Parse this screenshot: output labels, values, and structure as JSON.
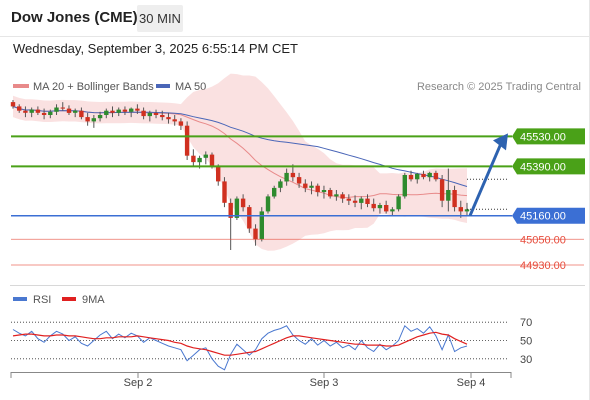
{
  "header": {
    "title": "Dow Jones (CME)",
    "timeframe": "30 MIN",
    "datetime": "Wednesday, September 3, 2025 6:55:14 PM CET"
  },
  "legend": {
    "ma20_label": "MA 20 + Bollinger Bands",
    "ma50_label": "MA 50",
    "credit": "Research © 2025 Trading Central",
    "rsi_label": "RSI",
    "rsi_ma_label": "9MA"
  },
  "colors": {
    "up": "#2e8b2e",
    "down": "#d03020",
    "support": "#3b6fd4",
    "resistance": "#4aa118",
    "target": "#e74c3c",
    "bands": "#f6c9c9",
    "ma20": "#e88a8a",
    "ma50": "#4a66b8",
    "rsi": "#4a78d0",
    "rsi_ma": "#e02020",
    "arrow": "#2d62b0"
  },
  "chart_data": [
    {
      "type": "candlestick",
      "title": "Dow Jones (CME)",
      "ylim": [
        44860,
        45700
      ],
      "x_tick_labels": [
        "Sep 2",
        "Sep 3",
        "Sep 4"
      ],
      "levels": [
        {
          "value": 45530.0,
          "label": "45530.00",
          "kind": "resistance"
        },
        {
          "value": 45390.0,
          "label": "45390.00",
          "kind": "resistance"
        },
        {
          "value": 45160.0,
          "label": "45160.00",
          "kind": "support"
        },
        {
          "value": 45050.0,
          "label": "45050.00",
          "kind": "target"
        },
        {
          "value": 44930.0,
          "label": "44930.00",
          "kind": "target"
        }
      ],
      "ohlc": [
        [
          45690,
          45700,
          45660,
          45670
        ],
        [
          45670,
          45680,
          45640,
          45650
        ],
        [
          45650,
          45670,
          45620,
          45640
        ],
        [
          45640,
          45665,
          45620,
          45655
        ],
        [
          45655,
          45670,
          45630,
          45640
        ],
        [
          45640,
          45660,
          45610,
          45630
        ],
        [
          45630,
          45655,
          45615,
          45645
        ],
        [
          45645,
          45680,
          45630,
          45665
        ],
        [
          45665,
          45690,
          45650,
          45660
        ],
        [
          45660,
          45675,
          45630,
          45640
        ],
        [
          45640,
          45660,
          45620,
          45650
        ],
        [
          45650,
          45665,
          45610,
          45620
        ],
        [
          45620,
          45640,
          45580,
          45600
        ],
        [
          45600,
          45630,
          45570,
          45615
        ],
        [
          45615,
          45645,
          45600,
          45630
        ],
        [
          45630,
          45660,
          45615,
          45650
        ],
        [
          45650,
          45670,
          45620,
          45640
        ],
        [
          45640,
          45665,
          45625,
          45655
        ],
        [
          45655,
          45670,
          45630,
          45645
        ],
        [
          45645,
          45665,
          45620,
          45660
        ],
        [
          45660,
          45680,
          45635,
          45650
        ],
        [
          45650,
          45665,
          45610,
          45625
        ],
        [
          45625,
          45650,
          45600,
          45640
        ],
        [
          45640,
          45655,
          45615,
          45630
        ],
        [
          45630,
          45650,
          45605,
          45620
        ],
        [
          45620,
          45640,
          45590,
          45610
        ],
        [
          45610,
          45630,
          45580,
          45600
        ],
        [
          45600,
          45615,
          45560,
          45580
        ],
        [
          45580,
          45600,
          45420,
          45440
        ],
        [
          45440,
          45470,
          45390,
          45410
        ],
        [
          45410,
          45440,
          45380,
          45430
        ],
        [
          45430,
          45460,
          45400,
          45445
        ],
        [
          45445,
          45455,
          45380,
          45390
        ],
        [
          45390,
          45400,
          45300,
          45320
        ],
        [
          45320,
          45340,
          45200,
          45220
        ],
        [
          45220,
          45240,
          45000,
          45150
        ],
        [
          45150,
          45250,
          45140,
          45240
        ],
        [
          45240,
          45260,
          45180,
          45200
        ],
        [
          45200,
          45210,
          45080,
          45100
        ],
        [
          45100,
          45120,
          45020,
          45050
        ],
        [
          45050,
          45200,
          45040,
          45180
        ],
        [
          45180,
          45260,
          45170,
          45250
        ],
        [
          45250,
          45300,
          45240,
          45290
        ],
        [
          45290,
          45330,
          45270,
          45320
        ],
        [
          45320,
          45380,
          45300,
          45360
        ],
        [
          45360,
          45400,
          45320,
          45340
        ],
        [
          45340,
          45360,
          45290,
          45310
        ],
        [
          45310,
          45330,
          45270,
          45290
        ],
        [
          45290,
          45320,
          45260,
          45300
        ],
        [
          45300,
          45310,
          45250,
          45270
        ],
        [
          45270,
          45300,
          45240,
          45280
        ],
        [
          45280,
          45290,
          45240,
          45250
        ],
        [
          45250,
          45280,
          45230,
          45260
        ],
        [
          45260,
          45270,
          45220,
          45240
        ],
        [
          45240,
          45260,
          45210,
          45230
        ],
        [
          45230,
          45255,
          45200,
          45220
        ],
        [
          45220,
          45250,
          45190,
          45240
        ],
        [
          45240,
          45260,
          45200,
          45215
        ],
        [
          45215,
          45240,
          45180,
          45195
        ],
        [
          45195,
          45220,
          45170,
          45210
        ],
        [
          45210,
          45230,
          45170,
          45180
        ],
        [
          45180,
          45200,
          45160,
          45190
        ],
        [
          45190,
          45260,
          45180,
          45250
        ],
        [
          45250,
          45360,
          45240,
          45350
        ],
        [
          45350,
          45370,
          45320,
          45330
        ],
        [
          45330,
          45360,
          45310,
          45355
        ],
        [
          45355,
          45370,
          45330,
          45340
        ],
        [
          45340,
          45365,
          45320,
          45360
        ],
        [
          45360,
          45370,
          45320,
          45330
        ],
        [
          45330,
          45350,
          45200,
          45230
        ],
        [
          45230,
          45380,
          45180,
          45280
        ],
        [
          45280,
          45300,
          45180,
          45200
        ],
        [
          45200,
          45230,
          45150,
          45180
        ],
        [
          45180,
          45220,
          45160,
          45190
        ]
      ]
    },
    {
      "type": "line",
      "title": "RSI",
      "ylim": [
        20,
        80
      ],
      "y_tick_labels": [
        "70",
        "50",
        "30"
      ],
      "y_ticks": [
        70,
        50,
        30
      ],
      "series": [
        {
          "name": "RSI",
          "values": [
            62,
            58,
            55,
            60,
            52,
            48,
            55,
            60,
            57,
            50,
            54,
            47,
            44,
            50,
            56,
            60,
            52,
            57,
            53,
            58,
            55,
            48,
            53,
            50,
            47,
            44,
            42,
            40,
            28,
            34,
            40,
            42,
            30,
            22,
            18,
            35,
            46,
            40,
            34,
            40,
            52,
            58,
            61,
            63,
            66,
            56,
            50,
            46,
            52,
            45,
            50,
            44,
            48,
            42,
            45,
            40,
            50,
            42,
            38,
            46,
            40,
            44,
            50,
            66,
            60,
            63,
            58,
            65,
            55,
            40,
            56,
            38,
            42,
            44
          ]
        },
        {
          "name": "9MA",
          "values": [
            55,
            56,
            57,
            57,
            56,
            55,
            55,
            56,
            56,
            55,
            55,
            54,
            53,
            52,
            52,
            53,
            53,
            54,
            54,
            54,
            55,
            54,
            53,
            52,
            51,
            50,
            48,
            47,
            44,
            42,
            41,
            40,
            38,
            36,
            34,
            34,
            35,
            36,
            37,
            38,
            41,
            44,
            47,
            50,
            53,
            55,
            55,
            54,
            53,
            52,
            51,
            50,
            49,
            48,
            47,
            46,
            46,
            45,
            45,
            45,
            44,
            44,
            45,
            48,
            51,
            54,
            56,
            58,
            59,
            57,
            56,
            52,
            49,
            46
          ]
        }
      ]
    }
  ]
}
